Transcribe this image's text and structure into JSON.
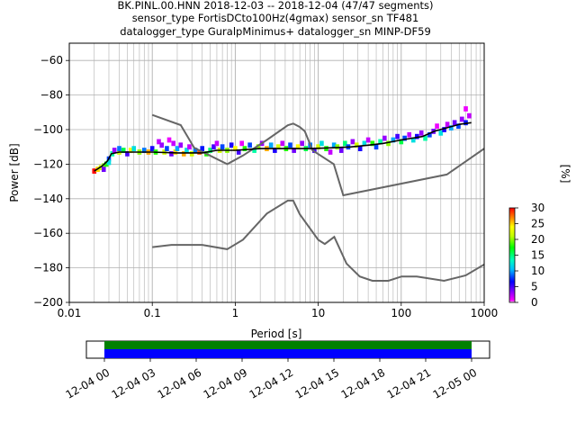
{
  "chart_data": {
    "type": "heatmap",
    "title_lines": [
      "BK.PINL.00.HNN   2018-12-03 -- 2018-12-04  (47/47 segments)",
      "sensor_type FortisDCto100Hz(4gmax) sensor_sn TF481",
      "datalogger_type GuralpMinimus+ datalogger_sn MINP-DF59"
    ],
    "xlabel": "Period [s]",
    "ylabel": "Power [dB]",
    "x_scale": "log",
    "xlim": [
      0.01,
      1000
    ],
    "ylim": [
      -200,
      -50
    ],
    "x_ticks": [
      {
        "value": 0.01,
        "label": "0.01"
      },
      {
        "value": 0.1,
        "label": "0.1"
      },
      {
        "value": 1,
        "label": "1"
      },
      {
        "value": 10,
        "label": "10"
      },
      {
        "value": 100,
        "label": "100"
      },
      {
        "value": 1000,
        "label": "1000"
      }
    ],
    "y_ticks": [
      {
        "value": -60,
        "label": "−60"
      },
      {
        "value": -80,
        "label": "−80"
      },
      {
        "value": -100,
        "label": "−100"
      },
      {
        "value": -120,
        "label": "−120"
      },
      {
        "value": -140,
        "label": "−140"
      },
      {
        "value": -160,
        "label": "−160"
      },
      {
        "value": -180,
        "label": "−180"
      },
      {
        "value": -200,
        "label": "−200"
      }
    ],
    "grid": true,
    "colorbar": {
      "label": "[%]",
      "range": [
        0,
        30
      ],
      "ticks": [
        {
          "value": 0,
          "label": "0"
        },
        {
          "value": 5,
          "label": "5"
        },
        {
          "value": 10,
          "label": "10"
        },
        {
          "value": 15,
          "label": "15"
        },
        {
          "value": 20,
          "label": "20"
        },
        {
          "value": 25,
          "label": "25"
        },
        {
          "value": 30,
          "label": "30"
        }
      ]
    },
    "noise_models": [
      {
        "points": [
          [
            0.1,
            -91.5
          ],
          [
            0.22,
            -97.4
          ],
          [
            0.32,
            -110.5
          ],
          [
            0.8,
            -120
          ],
          [
            1.24,
            -115
          ],
          [
            2.4,
            -106
          ],
          [
            4.3,
            -97.5
          ],
          [
            5,
            -96.5
          ],
          [
            6,
            -98.5
          ],
          [
            6.9,
            -101
          ],
          [
            7.6,
            -106
          ],
          [
            8.5,
            -112
          ],
          [
            15.4,
            -120
          ],
          [
            20,
            -138
          ],
          [
            354.8,
            -126
          ],
          [
            1000,
            -111
          ]
        ]
      },
      {
        "points": [
          [
            0.1,
            -168
          ],
          [
            0.17,
            -166.7
          ],
          [
            0.4,
            -166.7
          ],
          [
            0.8,
            -169.2
          ],
          [
            1.24,
            -163.7
          ],
          [
            2.4,
            -148.6
          ],
          [
            4.3,
            -141.1
          ],
          [
            5,
            -141.1
          ],
          [
            6,
            -149
          ],
          [
            10,
            -163.8
          ],
          [
            12,
            -166.2
          ],
          [
            15.6,
            -162.1
          ],
          [
            21.9,
            -177.5
          ],
          [
            31.6,
            -185
          ],
          [
            45,
            -187.5
          ],
          [
            70,
            -187.5
          ],
          [
            101,
            -185
          ],
          [
            154,
            -185
          ],
          [
            328,
            -187.5
          ],
          [
            600,
            -184.4
          ],
          [
            1000,
            -178
          ]
        ]
      }
    ],
    "psd_mode_line": {
      "points": [
        [
          0.02,
          -124
        ],
        [
          0.025,
          -121
        ],
        [
          0.029,
          -118
        ],
        [
          0.032,
          -114
        ],
        [
          0.04,
          -113
        ],
        [
          0.06,
          -113
        ],
        [
          0.1,
          -113
        ],
        [
          0.2,
          -113.5
        ],
        [
          0.4,
          -113.5
        ],
        [
          0.6,
          -112
        ],
        [
          1,
          -112
        ],
        [
          2,
          -111
        ],
        [
          4,
          -111
        ],
        [
          8,
          -111
        ],
        [
          15,
          -110.5
        ],
        [
          25,
          -110
        ],
        [
          40,
          -109
        ],
        [
          60,
          -108
        ],
        [
          100,
          -106
        ],
        [
          180,
          -104
        ],
        [
          250,
          -101
        ],
        [
          350,
          -99
        ],
        [
          500,
          -97
        ],
        [
          700,
          -96
        ]
      ]
    },
    "histogram_cells": [
      {
        "period": 0.02,
        "power": -124,
        "pct": 30
      },
      {
        "period": 0.022,
        "power": -123,
        "pct": 25
      },
      {
        "period": 0.024,
        "power": -122,
        "pct": 22
      },
      {
        "period": 0.026,
        "power": -121,
        "pct": 20
      },
      {
        "period": 0.026,
        "power": -123,
        "pct": 4
      },
      {
        "period": 0.028,
        "power": -120,
        "pct": 18
      },
      {
        "period": 0.03,
        "power": -117,
        "pct": 8
      },
      {
        "period": 0.03,
        "power": -119,
        "pct": 12
      },
      {
        "period": 0.033,
        "power": -114,
        "pct": 14
      },
      {
        "period": 0.035,
        "power": -112,
        "pct": 3
      },
      {
        "period": 0.04,
        "power": -113,
        "pct": 22
      },
      {
        "period": 0.04,
        "power": -111,
        "pct": 9
      },
      {
        "period": 0.045,
        "power": -112,
        "pct": 16
      },
      {
        "period": 0.05,
        "power": -114,
        "pct": 5
      },
      {
        "period": 0.055,
        "power": -112,
        "pct": 24
      },
      {
        "period": 0.06,
        "power": -111,
        "pct": 12
      },
      {
        "period": 0.07,
        "power": -113,
        "pct": 20
      },
      {
        "period": 0.08,
        "power": -112,
        "pct": 9
      },
      {
        "period": 0.09,
        "power": -113,
        "pct": 26
      },
      {
        "period": 0.1,
        "power": -111,
        "pct": 6
      },
      {
        "period": 0.11,
        "power": -113,
        "pct": 18
      },
      {
        "period": 0.12,
        "power": -107,
        "pct": 2
      },
      {
        "period": 0.13,
        "power": -109,
        "pct": 3
      },
      {
        "period": 0.14,
        "power": -113,
        "pct": 22
      },
      {
        "period": 0.15,
        "power": -111,
        "pct": 8
      },
      {
        "period": 0.16,
        "power": -106,
        "pct": 1
      },
      {
        "period": 0.17,
        "power": -114,
        "pct": 4
      },
      {
        "period": 0.18,
        "power": -108,
        "pct": 2
      },
      {
        "period": 0.19,
        "power": -113,
        "pct": 25
      },
      {
        "period": 0.2,
        "power": -111,
        "pct": 10
      },
      {
        "period": 0.22,
        "power": -109,
        "pct": 3
      },
      {
        "period": 0.24,
        "power": -114,
        "pct": 26
      },
      {
        "period": 0.26,
        "power": -112,
        "pct": 12
      },
      {
        "period": 0.28,
        "power": -110,
        "pct": 2
      },
      {
        "period": 0.3,
        "power": -114,
        "pct": 22
      },
      {
        "period": 0.33,
        "power": -112,
        "pct": 9
      },
      {
        "period": 0.37,
        "power": -113,
        "pct": 28
      },
      {
        "period": 0.4,
        "power": -111,
        "pct": 7
      },
      {
        "period": 0.45,
        "power": -114,
        "pct": 18
      },
      {
        "period": 0.5,
        "power": -112,
        "pct": 15
      },
      {
        "period": 0.55,
        "power": -110,
        "pct": 5
      },
      {
        "period": 0.6,
        "power": -108,
        "pct": 2
      },
      {
        "period": 0.65,
        "power": -112,
        "pct": 22
      },
      {
        "period": 0.7,
        "power": -110,
        "pct": 8
      },
      {
        "period": 0.8,
        "power": -112,
        "pct": 20
      },
      {
        "period": 0.9,
        "power": -109,
        "pct": 6
      },
      {
        "period": 1.0,
        "power": -111,
        "pct": 24
      },
      {
        "period": 1.1,
        "power": -113,
        "pct": 5
      },
      {
        "period": 1.2,
        "power": -108,
        "pct": 1
      },
      {
        "period": 1.3,
        "power": -111,
        "pct": 18
      },
      {
        "period": 1.5,
        "power": -109,
        "pct": 8
      },
      {
        "period": 1.7,
        "power": -112,
        "pct": 14
      },
      {
        "period": 1.9,
        "power": -110,
        "pct": 20
      },
      {
        "period": 2.1,
        "power": -108,
        "pct": 3
      },
      {
        "period": 2.4,
        "power": -111,
        "pct": 26
      },
      {
        "period": 2.7,
        "power": -109,
        "pct": 10
      },
      {
        "period": 3.0,
        "power": -112,
        "pct": 6
      },
      {
        "period": 3.3,
        "power": -110,
        "pct": 22
      },
      {
        "period": 3.7,
        "power": -108,
        "pct": 2
      },
      {
        "period": 4.1,
        "power": -111,
        "pct": 18
      },
      {
        "period": 4.6,
        "power": -109,
        "pct": 8
      },
      {
        "period": 5.1,
        "power": -112,
        "pct": 4
      },
      {
        "period": 5.7,
        "power": -110,
        "pct": 24
      },
      {
        "period": 6.4,
        "power": -108,
        "pct": 3
      },
      {
        "period": 7.1,
        "power": -111,
        "pct": 16
      },
      {
        "period": 8.0,
        "power": -109,
        "pct": 9
      },
      {
        "period": 9.0,
        "power": -112,
        "pct": 5
      },
      {
        "period": 10,
        "power": -110,
        "pct": 22
      },
      {
        "period": 11,
        "power": -108,
        "pct": 12
      },
      {
        "period": 12.5,
        "power": -111,
        "pct": 18
      },
      {
        "period": 14,
        "power": -113,
        "pct": 2
      },
      {
        "period": 15.5,
        "power": -109,
        "pct": 10
      },
      {
        "period": 17,
        "power": -110,
        "pct": 20
      },
      {
        "period": 19,
        "power": -112,
        "pct": 4
      },
      {
        "period": 21,
        "power": -108,
        "pct": 15
      },
      {
        "period": 23,
        "power": -110,
        "pct": 8
      },
      {
        "period": 26,
        "power": -107,
        "pct": 3
      },
      {
        "period": 29,
        "power": -109,
        "pct": 22
      },
      {
        "period": 32,
        "power": -111,
        "pct": 6
      },
      {
        "period": 36,
        "power": -108,
        "pct": 12
      },
      {
        "period": 40,
        "power": -106,
        "pct": 2
      },
      {
        "period": 45,
        "power": -108,
        "pct": 18
      },
      {
        "period": 50,
        "power": -110,
        "pct": 8
      },
      {
        "period": 56,
        "power": -107,
        "pct": 14
      },
      {
        "period": 63,
        "power": -105,
        "pct": 3
      },
      {
        "period": 70,
        "power": -108,
        "pct": 20
      },
      {
        "period": 80,
        "power": -106,
        "pct": 10
      },
      {
        "period": 90,
        "power": -104,
        "pct": 5
      },
      {
        "period": 100,
        "power": -107,
        "pct": 16
      },
      {
        "period": 110,
        "power": -105,
        "pct": 8
      },
      {
        "period": 125,
        "power": -103,
        "pct": 2
      },
      {
        "period": 140,
        "power": -106,
        "pct": 12
      },
      {
        "period": 155,
        "power": -104,
        "pct": 6
      },
      {
        "period": 175,
        "power": -102,
        "pct": 3
      },
      {
        "period": 195,
        "power": -105,
        "pct": 14
      },
      {
        "period": 220,
        "power": -103,
        "pct": 8
      },
      {
        "period": 245,
        "power": -101,
        "pct": 4
      },
      {
        "period": 270,
        "power": -98,
        "pct": 1
      },
      {
        "period": 300,
        "power": -102,
        "pct": 12
      },
      {
        "period": 330,
        "power": -100,
        "pct": 6
      },
      {
        "period": 360,
        "power": -97,
        "pct": 2
      },
      {
        "period": 400,
        "power": -99,
        "pct": 10
      },
      {
        "period": 440,
        "power": -96,
        "pct": 4
      },
      {
        "period": 490,
        "power": -98,
        "pct": 8
      },
      {
        "period": 540,
        "power": -94,
        "pct": 3
      },
      {
        "period": 600,
        "power": -88,
        "pct": 1
      },
      {
        "period": 600,
        "power": -96,
        "pct": 7
      },
      {
        "period": 660,
        "power": -92,
        "pct": 2
      }
    ]
  },
  "timeline": {
    "xlim": [
      0,
      24
    ],
    "data_start": 0,
    "data_end": 24,
    "data_color": "#0000ff",
    "gap_free_color": "#008000",
    "ticks": [
      {
        "hour": 0,
        "label": "12-04 00"
      },
      {
        "hour": 3,
        "label": "12-04 03"
      },
      {
        "hour": 6,
        "label": "12-04 06"
      },
      {
        "hour": 9,
        "label": "12-04 09"
      },
      {
        "hour": 12,
        "label": "12-04 12"
      },
      {
        "hour": 15,
        "label": "12-04 15"
      },
      {
        "hour": 18,
        "label": "12-04 18"
      },
      {
        "hour": 21,
        "label": "12-04 21"
      },
      {
        "hour": 24,
        "label": "12-05 00"
      }
    ]
  }
}
